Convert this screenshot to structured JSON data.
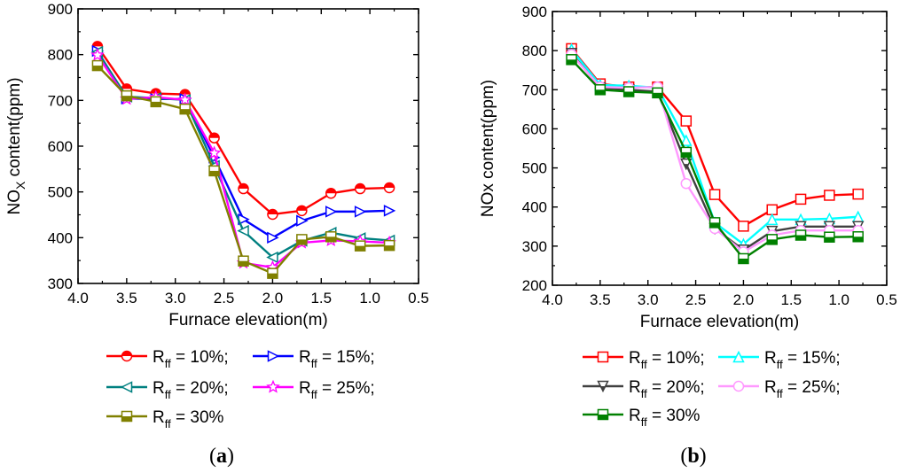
{
  "chart_data": [
    {
      "type": "line",
      "panel_label": "(a)",
      "xlabel": "Furnace elevation(m)",
      "ylabel": "NOX content(ppm)",
      "xlim": [
        4.0,
        0.5
      ],
      "ylim": [
        300,
        900
      ],
      "xticks": [
        4.0,
        3.5,
        3.0,
        2.5,
        2.0,
        1.5,
        1.0,
        0.5
      ],
      "xtick_labels": [
        "4.0",
        "3.5",
        "3.0",
        "2.5",
        "2.0",
        "1.5",
        "1.0",
        "0.5"
      ],
      "yticks": [
        300,
        400,
        500,
        600,
        700,
        800,
        900
      ],
      "ytick_labels": [
        "300",
        "400",
        "500",
        "600",
        "700",
        "800",
        "900"
      ],
      "x": [
        3.8,
        3.5,
        3.2,
        2.9,
        2.6,
        2.3,
        2.0,
        1.7,
        1.4,
        1.1,
        0.8
      ],
      "series": [
        {
          "name": "R_ff = 10%;",
          "color": "#ff0000",
          "marker": "circle-half",
          "values": [
            818,
            725,
            715,
            713,
            618,
            507,
            451,
            459,
            497,
            507,
            509
          ]
        },
        {
          "name": "R_ff = 15%;",
          "color": "#0000ff",
          "marker": "triangle-right",
          "values": [
            808,
            704,
            703,
            703,
            575,
            440,
            400,
            437,
            457,
            457,
            459
          ]
        },
        {
          "name": "R_ff = 20%;",
          "color": "#008080",
          "marker": "triangle-left",
          "values": [
            806,
            708,
            705,
            701,
            557,
            415,
            357,
            393,
            411,
            399,
            394
          ]
        },
        {
          "name": "R_ff = 25%;",
          "color": "#ff00ff",
          "marker": "star",
          "values": [
            799,
            703,
            707,
            701,
            585,
            345,
            335,
            389,
            394,
            392,
            389
          ]
        },
        {
          "name": "R_ff = 30%",
          "color": "#808000",
          "marker": "square-half",
          "values": [
            776,
            710,
            697,
            681,
            546,
            349,
            322,
            396,
            402,
            382,
            383
          ]
        }
      ],
      "legend": {
        "rows": [
          [
            {
              "series": 0,
              "text": "= 10%;"
            },
            {
              "series": 1,
              "text": "= 15%;"
            }
          ],
          [
            {
              "series": 2,
              "text": "= 20%;"
            },
            {
              "series": 3,
              "text": "= 25%;"
            }
          ],
          [
            {
              "series": 4,
              "text": "= 30%"
            }
          ]
        ],
        "r_main": "R",
        "r_sub": "ff"
      },
      "ylabel_parts": {
        "main": "NO",
        "sub": "X",
        "rest": " content(ppm)"
      }
    },
    {
      "type": "line",
      "panel_label": "(b)",
      "xlabel": "Furnace elevation(m)",
      "ylabel": "NOx content(ppm)",
      "xlim": [
        4.0,
        0.5
      ],
      "ylim": [
        200,
        900
      ],
      "xticks": [
        4.0,
        3.5,
        3.0,
        2.5,
        2.0,
        1.5,
        1.0,
        0.5
      ],
      "xtick_labels": [
        "4.0",
        "3.5",
        "3.0",
        "2.5",
        "2.0",
        "1.5",
        "1.0",
        "0.5"
      ],
      "yticks": [
        200,
        300,
        400,
        500,
        600,
        700,
        800,
        900
      ],
      "ytick_labels": [
        "200",
        "300",
        "400",
        "500",
        "600",
        "700",
        "800",
        "900"
      ],
      "x": [
        3.8,
        3.5,
        3.2,
        2.9,
        2.6,
        2.3,
        2.0,
        1.7,
        1.4,
        1.1,
        0.8
      ],
      "series": [
        {
          "name": "R_ff = 10%;",
          "color": "#ff0000",
          "marker": "square-open",
          "values": [
            805,
            715,
            707,
            707,
            620,
            432,
            351,
            393,
            420,
            430,
            433
          ]
        },
        {
          "name": "R_ff = 15%;",
          "color": "#00ffff",
          "marker": "triangle-up-open",
          "values": [
            803,
            712,
            710,
            705,
            570,
            360,
            305,
            368,
            368,
            370,
            375
          ]
        },
        {
          "name": "R_ff = 20%;",
          "color": "#404040",
          "marker": "triangle-down-half",
          "values": [
            793,
            705,
            700,
            695,
            510,
            345,
            290,
            338,
            350,
            350,
            350
          ]
        },
        {
          "name": "R_ff = 25%;",
          "color": "#ff99ff",
          "marker": "circle-open",
          "values": [
            790,
            707,
            705,
            707,
            460,
            345,
            285,
            328,
            340,
            340,
            340
          ]
        },
        {
          "name": "R_ff = 30%",
          "color": "#008000",
          "marker": "square-half",
          "values": [
            777,
            700,
            695,
            692,
            540,
            360,
            268,
            317,
            328,
            323,
            324
          ]
        }
      ],
      "legend": {
        "rows": [
          [
            {
              "series": 0,
              "text": "= 10%;"
            },
            {
              "series": 1,
              "text": "= 15%;"
            }
          ],
          [
            {
              "series": 2,
              "text": "= 20%;"
            },
            {
              "series": 3,
              "text": "= 25%;"
            }
          ],
          [
            {
              "series": 4,
              "text": "= 30%"
            }
          ]
        ],
        "r_main": "R",
        "r_sub": "ff"
      }
    }
  ]
}
